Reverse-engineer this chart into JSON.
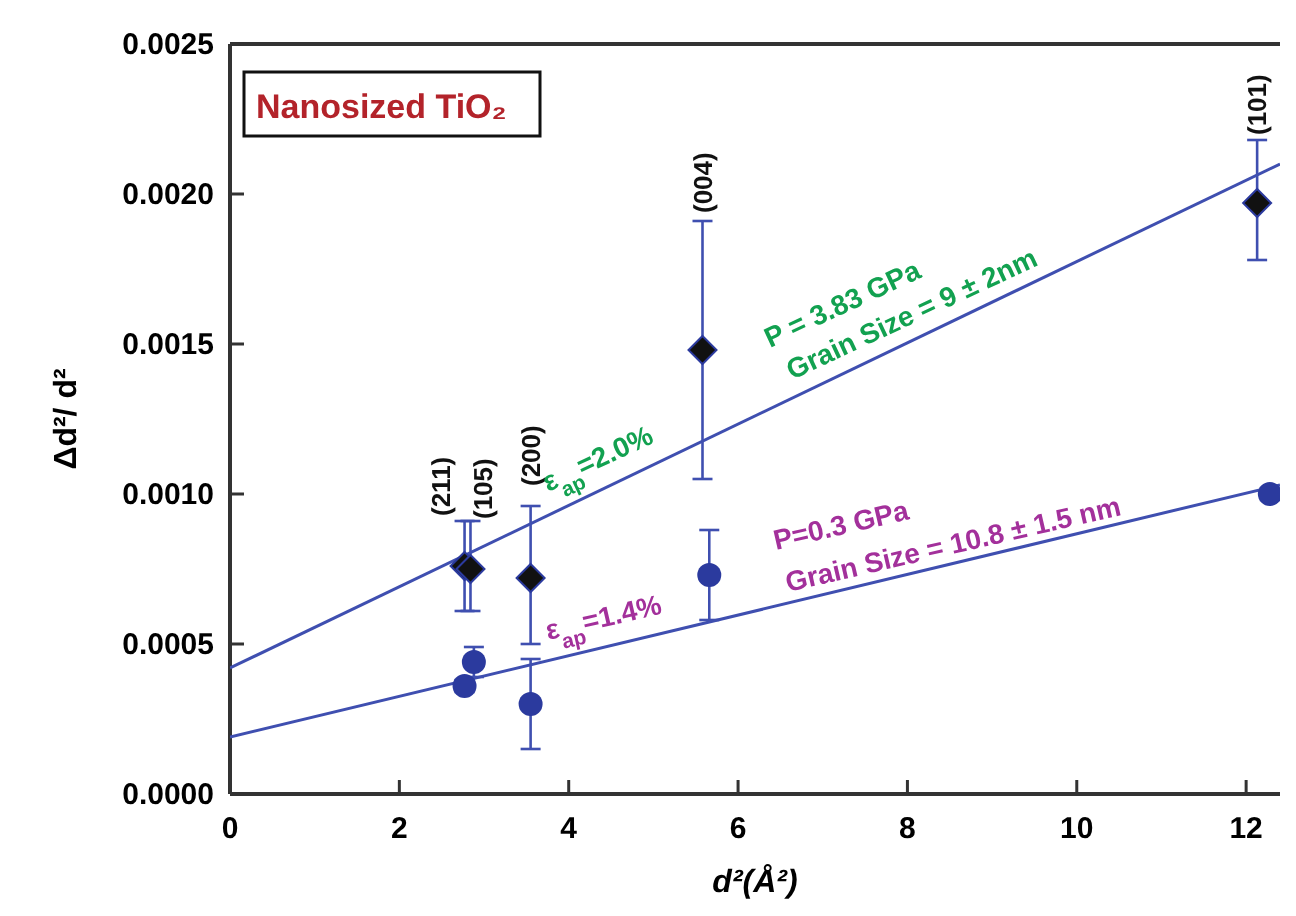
{
  "chart_data": {
    "type": "scatter",
    "xlabel": "d²(Å²)",
    "ylabel": "Δd²/ d²",
    "xlim": [
      0,
      12.4
    ],
    "ylim": [
      0,
      0.0025
    ],
    "xticks": [
      0,
      2,
      4,
      6,
      8,
      10,
      12
    ],
    "yticks": [
      {
        "value": 0,
        "label": "0.0000"
      },
      {
        "value": 0.0005,
        "label": "0.0005"
      },
      {
        "value": 0.001,
        "label": "0.0010"
      },
      {
        "value": 0.0015,
        "label": "0.0015"
      },
      {
        "value": 0.002,
        "label": "0.0020"
      },
      {
        "value": 0.0025,
        "label": "0.0025"
      }
    ],
    "grid": false,
    "series": [
      {
        "type": "line",
        "color": "#3f4fb0",
        "x": [
          0,
          12.4
        ],
        "values": [
          0.00042,
          0.0021
        ],
        "marker": "none"
      },
      {
        "type": "line",
        "color": "#3f4fb0",
        "x": [
          0,
          12.4
        ],
        "values": [
          0.00019,
          0.00103
        ],
        "marker": "none"
      },
      {
        "type": "scatter",
        "color": "#111111",
        "marker": "diamond",
        "x": [
          2.77,
          2.84,
          3.55,
          5.58,
          12.13
        ],
        "values": [
          0.00076,
          0.00075,
          0.00072,
          0.00148,
          0.00197
        ],
        "errors": [
          [
            0.00061,
            0.00091
          ],
          [
            0.00061,
            0.00091
          ],
          [
            0.0005,
            0.00096
          ],
          [
            0.00105,
            0.00191
          ],
          [
            0.00178,
            0.00218
          ]
        ]
      },
      {
        "type": "scatter",
        "color": "#2b3a9e",
        "marker": "circle",
        "x": [
          2.77,
          2.88,
          3.55,
          5.66,
          12.28
        ],
        "values": [
          0.00036,
          0.00044,
          0.0003,
          0.00073,
          0.001
        ],
        "errors": [
          [
            0.00034,
            0.00038
          ],
          [
            0.00039,
            0.00049
          ],
          [
            0.00015,
            0.00045
          ],
          [
            0.00058,
            0.00088
          ],
          [
            0.00098,
            0.00102
          ]
        ]
      }
    ],
    "annotations": [
      "Nanosized TiO₂",
      {
        "text": "(211)",
        "x": 2.77,
        "y": 0.00076
      },
      {
        "text": "(105)",
        "x": 2.84,
        "y": 0.00075
      },
      {
        "text": "(200)",
        "x": 3.55,
        "y": 0.00096
      },
      {
        "text": "(004)",
        "x": 5.58,
        "y": 0.00191
      },
      {
        "text": "(101)",
        "x": 12.13,
        "y": 0.00197
      },
      "P = 3.83 GPa",
      "Grain Size = 9 ± 2nm",
      "ε$_{ap}$=2.0%",
      "P=0.3 GPa",
      "Grain Size = 10.8 ± 1.5 nm",
      "ε$_{ap}$=1.4%"
    ]
  }
}
